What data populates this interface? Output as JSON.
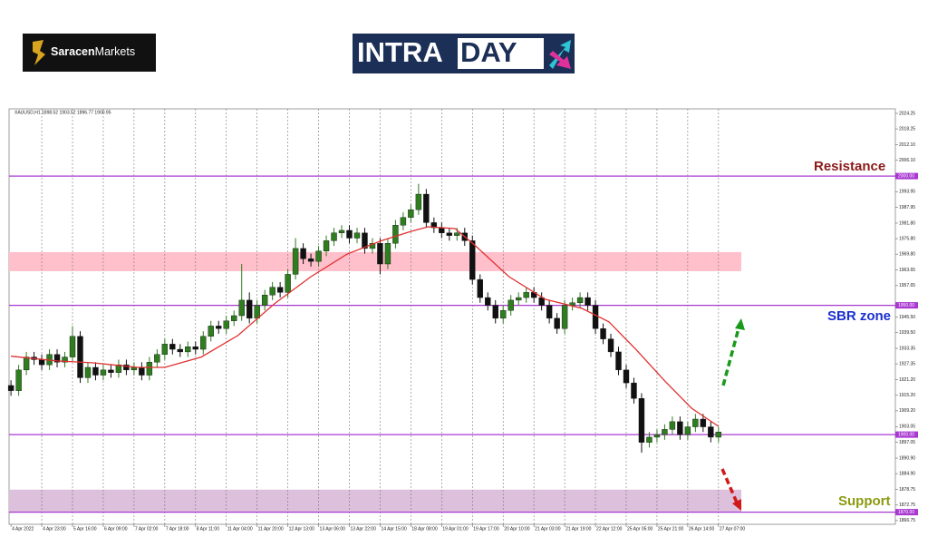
{
  "header": {
    "brand_bold": "Saracen",
    "brand_regular": "Markets",
    "banner_left": "INTRA",
    "banner_right": "DAY"
  },
  "chart_data": {
    "type": "candlestick",
    "subtitle": "XAUUSD,H1  1898.52 1903.52 1896.77 1900.95",
    "x": [
      0,
      4,
      8,
      12,
      16,
      20,
      24,
      28,
      32,
      36,
      40,
      44,
      48,
      52,
      56,
      60,
      64,
      68,
      72,
      76,
      80,
      84,
      88,
      92,
      96,
      100,
      104,
      108,
      112,
      116,
      120,
      124,
      128,
      132,
      136,
      140,
      144,
      148,
      152,
      156,
      160,
      164,
      168,
      172,
      176,
      180,
      184,
      188,
      192,
      196,
      200,
      204,
      208,
      212,
      216,
      220,
      224,
      228,
      232,
      236,
      240,
      244,
      248,
      252,
      256,
      260,
      264,
      268,
      272,
      276,
      280,
      284,
      288,
      292,
      296,
      300,
      304,
      308,
      312,
      316,
      320,
      324,
      328,
      332,
      336,
      340,
      344,
      348,
      352,
      356,
      360,
      364,
      368
    ],
    "open": [
      1919,
      1917,
      1925,
      1930,
      1929,
      1927,
      1931,
      1928,
      1930,
      1938,
      1922,
      1926,
      1923,
      1925,
      1924,
      1927,
      1925,
      1926,
      1923,
      1928,
      1931,
      1935,
      1933,
      1932,
      1934,
      1933,
      1938,
      1942,
      1941,
      1944,
      1946,
      1952,
      1945,
      1950,
      1954,
      1957,
      1955,
      1962,
      1972,
      1968,
      1967,
      1971,
      1975,
      1978,
      1979,
      1976,
      1978,
      1972,
      1974,
      1966,
      1974,
      1981,
      1984,
      1987,
      1993,
      1982,
      1980,
      1978,
      1977,
      1978,
      1975,
      1960,
      1953,
      1950,
      1945,
      1948,
      1952,
      1953,
      1955,
      1953,
      1950,
      1945,
      1941,
      1950,
      1951,
      1953,
      1950,
      1941,
      1937,
      1932,
      1925,
      1920,
      1914,
      1897,
      1899,
      1900,
      1902,
      1905,
      1900,
      1903,
      1906,
      1903,
      1899
    ],
    "high": [
      1921,
      1927,
      1932,
      1932,
      1931,
      1933,
      1933,
      1932,
      1942,
      1940,
      1928,
      1928,
      1927,
      1927,
      1929,
      1929,
      1928,
      1928,
      1930,
      1933,
      1937,
      1937,
      1935,
      1936,
      1936,
      1940,
      1944,
      1944,
      1946,
      1948,
      1966,
      1955,
      1952,
      1956,
      1959,
      1959,
      1964,
      1976,
      1974,
      1970,
      1973,
      1977,
      1980,
      1981,
      1981,
      1980,
      1980,
      1976,
      1976,
      1976,
      1983,
      1986,
      1989,
      1997,
      1995,
      1984,
      1982,
      1980,
      1980,
      1980,
      1977,
      1962,
      1955,
      1952,
      1950,
      1954,
      1955,
      1957,
      1957,
      1955,
      1952,
      1947,
      1952,
      1953,
      1955,
      1955,
      1952,
      1943,
      1939,
      1934,
      1927,
      1922,
      1916,
      1901,
      1902,
      1904,
      1907,
      1907,
      1905,
      1908,
      1908,
      1905,
      1903
    ],
    "low": [
      1915,
      1915,
      1923,
      1927,
      1925,
      1925,
      1926,
      1926,
      1928,
      1920,
      1920,
      1921,
      1921,
      1922,
      1922,
      1923,
      1923,
      1921,
      1921,
      1926,
      1929,
      1931,
      1930,
      1930,
      1931,
      1931,
      1936,
      1939,
      1939,
      1942,
      1944,
      1943,
      1943,
      1948,
      1952,
      1953,
      1953,
      1960,
      1966,
      1965,
      1965,
      1969,
      1973,
      1976,
      1974,
      1974,
      1970,
      1970,
      1962,
      1964,
      1972,
      1979,
      1982,
      1985,
      1980,
      1978,
      1976,
      1975,
      1975,
      1973,
      1958,
      1951,
      1948,
      1943,
      1943,
      1946,
      1950,
      1951,
      1951,
      1948,
      1943,
      1939,
      1939,
      1948,
      1949,
      1948,
      1939,
      1935,
      1930,
      1923,
      1918,
      1912,
      1893,
      1895,
      1897,
      1898,
      1900,
      1898,
      1898,
      1901,
      1901,
      1897,
      1897
    ],
    "close": [
      1917,
      1925,
      1930,
      1929,
      1927,
      1931,
      1928,
      1930,
      1938,
      1922,
      1926,
      1923,
      1925,
      1924,
      1927,
      1925,
      1926,
      1923,
      1928,
      1931,
      1935,
      1933,
      1932,
      1934,
      1933,
      1938,
      1942,
      1941,
      1944,
      1946,
      1952,
      1945,
      1950,
      1954,
      1957,
      1955,
      1962,
      1972,
      1968,
      1967,
      1971,
      1975,
      1978,
      1979,
      1976,
      1978,
      1972,
      1974,
      1966,
      1974,
      1981,
      1984,
      1987,
      1993,
      1982,
      1980,
      1978,
      1977,
      1978,
      1975,
      1960,
      1953,
      1950,
      1945,
      1948,
      1952,
      1953,
      1955,
      1953,
      1950,
      1945,
      1941,
      1950,
      1951,
      1953,
      1950,
      1941,
      1937,
      1932,
      1925,
      1920,
      1914,
      1897,
      1899,
      1900,
      1902,
      1905,
      1900,
      1903,
      1906,
      1903,
      1899,
      1901
    ],
    "up_color": "#2e7d1e",
    "down_color": "#111111",
    "overlay": {
      "color": "#e03030",
      "x": [
        0,
        24,
        42,
        66,
        80,
        99,
        118,
        137,
        156,
        175,
        193,
        208,
        217,
        231,
        241,
        259,
        278,
        297,
        311,
        325,
        340,
        354,
        368
      ],
      "values": [
        1930.3,
        1928.5,
        1927.8,
        1926,
        1926,
        1930,
        1938.3,
        1950.6,
        1961.1,
        1969.9,
        1975.1,
        1978.6,
        1980.4,
        1979.7,
        1973.4,
        1961.1,
        1952.3,
        1948.8,
        1943.6,
        1933,
        1920.8,
        1910.2,
        1903.2
      ]
    },
    "xlim": [
      -1,
      460
    ],
    "ylim": [
      1865.3,
      2026.0
    ],
    "xticks": [
      {
        "value": 0,
        "label": "4 Apr 2022"
      },
      {
        "value": 16,
        "label": "4 Apr 23:00"
      },
      {
        "value": 32,
        "label": "5 Apr 16:00"
      },
      {
        "value": 48,
        "label": "6 Apr 09:00"
      },
      {
        "value": 64,
        "label": "7 Apr 02:00"
      },
      {
        "value": 80,
        "label": "7 Apr 18:00"
      },
      {
        "value": 96,
        "label": "8 Apr 11:00"
      },
      {
        "value": 112,
        "label": "11 Apr 04:00"
      },
      {
        "value": 128,
        "label": "11 Apr 20:00"
      },
      {
        "value": 144,
        "label": "12 Apr 13:00"
      },
      {
        "value": 160,
        "label": "13 Apr 06:00"
      },
      {
        "value": 176,
        "label": "13 Apr 22:00"
      },
      {
        "value": 192,
        "label": "14 Apr 15:00"
      },
      {
        "value": 208,
        "label": "18 Apr 08:00"
      },
      {
        "value": 224,
        "label": "19 Apr 01:00"
      },
      {
        "value": 240,
        "label": "19 Apr 17:00"
      },
      {
        "value": 256,
        "label": "20 Apr 10:00"
      },
      {
        "value": 272,
        "label": "21 Apr 03:00"
      },
      {
        "value": 288,
        "label": "21 Apr 19:00"
      },
      {
        "value": 304,
        "label": "22 Apr 12:00"
      },
      {
        "value": 320,
        "label": "25 Apr 05:00"
      },
      {
        "value": 336,
        "label": "25 Apr 21:00"
      },
      {
        "value": 352,
        "label": "26 Apr 14:00"
      },
      {
        "value": 368,
        "label": "27 Apr 07:00"
      }
    ],
    "yticks": [
      {
        "value": 2024.25,
        "label": "2024.25"
      },
      {
        "value": 2018.25,
        "label": "2018.25"
      },
      {
        "value": 2012.1,
        "label": "2012.10"
      },
      {
        "value": 2006.1,
        "label": "2006.10"
      },
      {
        "value": 1993.95,
        "label": "1993.95"
      },
      {
        "value": 1987.95,
        "label": "1987.95"
      },
      {
        "value": 1981.8,
        "label": "1981.80"
      },
      {
        "value": 1975.8,
        "label": "1975.80"
      },
      {
        "value": 1969.8,
        "label": "1969.80"
      },
      {
        "value": 1963.65,
        "label": "1963.65"
      },
      {
        "value": 1957.65,
        "label": "1957.65"
      },
      {
        "value": 1945.5,
        "label": "1945.50"
      },
      {
        "value": 1939.5,
        "label": "1939.50"
      },
      {
        "value": 1933.35,
        "label": "1933.35"
      },
      {
        "value": 1927.35,
        "label": "1927.35"
      },
      {
        "value": 1921.2,
        "label": "1921.20"
      },
      {
        "value": 1915.2,
        "label": "1915.20"
      },
      {
        "value": 1909.2,
        "label": "1909.20"
      },
      {
        "value": 1903.05,
        "label": "1903.05"
      },
      {
        "value": 1897.05,
        "label": "1897.05"
      },
      {
        "value": 1890.9,
        "label": "1890.90"
      },
      {
        "value": 1884.9,
        "label": "1884.90"
      },
      {
        "value": 1878.75,
        "label": "1878.75"
      },
      {
        "value": 1872.75,
        "label": "1872.75"
      },
      {
        "value": 1866.75,
        "label": "1866.75"
      }
    ],
    "levels": [
      {
        "value": 2000,
        "label": "2000.00"
      },
      {
        "value": 1950,
        "label": "1950.00"
      },
      {
        "value": 1900,
        "label": "1900.00"
      },
      {
        "value": 1870,
        "label": "1870.00"
      }
    ],
    "level_color": "#a838d0",
    "zones": [
      {
        "range": [
          1963.2,
          1970.6
        ],
        "color": "#ffc0cb"
      },
      {
        "range": [
          1870,
          1878.7
        ],
        "color": "#dcc0dc"
      }
    ],
    "annotations": [
      {
        "text": "Resistance",
        "color": "#8b1a1a"
      },
      {
        "text": "SBR zone",
        "color": "#1a2fd0"
      },
      {
        "text": "Support",
        "color": "#8a9a10"
      }
    ],
    "grid": true
  }
}
